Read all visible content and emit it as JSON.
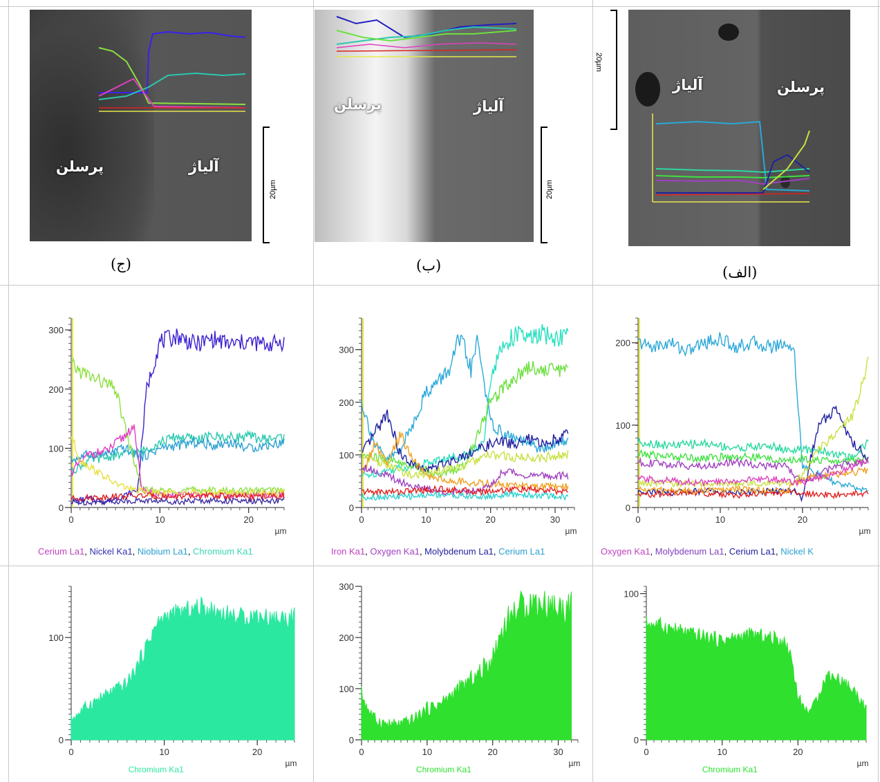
{
  "captions": {
    "right": "(الف)",
    "middle": "(ب)",
    "left": "(ج)"
  },
  "sem_labels": {
    "porcelain": "پرسلن",
    "alloy": "آلیاژ"
  },
  "scale_label": "20µm",
  "colors": {
    "ceramic_bg": "#5a5a5a",
    "accent_yellow": "#e8e84a",
    "cr_left": "#2be8a0",
    "cr_green": "#2fe02f"
  },
  "legends": {
    "left": [
      {
        "text": "Cerium La1",
        "color": "#c040c0"
      },
      {
        "text": "Nickel Ka1",
        "color": "#3030b0"
      },
      {
        "text": "Niobium La1",
        "color": "#2aa0d0"
      },
      {
        "text": "Chromium Ka1",
        "color": "#3ad8b0"
      }
    ],
    "middle": [
      {
        "text": "Iron Ka1",
        "color": "#c040c0"
      },
      {
        "text": "Oxygen Ka1",
        "color": "#a040c0"
      },
      {
        "text": "Molybdenum La1",
        "color": "#2020a0"
      },
      {
        "text": "Cerium La1",
        "color": "#2aa0d0"
      }
    ],
    "right": [
      {
        "text": "Oxygen Ka1",
        "color": "#c040c0"
      },
      {
        "text": "Molybdenum La1",
        "color": "#8040c0"
      },
      {
        "text": "Cerium La1",
        "color": "#2020a0"
      },
      {
        "text": "Nickel K",
        "color": "#2aa0d0"
      }
    ]
  },
  "chart_data": [
    {
      "type": "line",
      "title": "",
      "xlabel": "µm",
      "ylabel": "",
      "xlim": [
        0,
        24
      ],
      "ylim": [
        0,
        320
      ],
      "xticks": [
        0,
        10,
        20
      ],
      "yticks": [
        0,
        100,
        200,
        300
      ],
      "series": [
        {
          "color": "#3a20d0",
          "x": [
            0,
            2,
            4,
            6,
            7.5,
            8.5,
            10,
            12,
            14,
            16,
            18,
            20,
            22,
            24
          ],
          "y": [
            10,
            15,
            10,
            20,
            30,
            200,
            280,
            290,
            275,
            285,
            275,
            280,
            275,
            280
          ]
        },
        {
          "color": "#2ac8b0",
          "x": [
            0,
            2,
            4,
            6,
            8,
            10,
            12,
            14,
            16,
            18,
            20,
            22,
            24
          ],
          "y": [
            60,
            80,
            85,
            90,
            95,
            110,
            120,
            115,
            120,
            118,
            120,
            115,
            120
          ]
        },
        {
          "color": "#2aa0d0",
          "x": [
            0,
            2,
            4,
            6,
            8,
            10,
            12,
            14,
            16,
            18,
            20,
            22,
            24
          ],
          "y": [
            80,
            90,
            90,
            100,
            85,
            100,
            105,
            110,
            105,
            110,
            100,
            105,
            110
          ]
        },
        {
          "color": "#8ce040",
          "x": [
            0,
            1,
            3,
            5,
            6.5,
            8,
            10,
            14,
            18,
            24
          ],
          "y": [
            240,
            230,
            215,
            200,
            110,
            30,
            28,
            30,
            28,
            30
          ]
        },
        {
          "color": "#e040c0",
          "x": [
            0,
            2,
            4,
            6,
            7,
            8,
            10,
            14,
            18,
            24
          ],
          "y": [
            60,
            90,
            95,
            120,
            140,
            30,
            20,
            22,
            20,
            22
          ]
        },
        {
          "color": "#e8e040",
          "x": [
            0,
            1,
            3,
            5,
            7,
            9,
            14,
            24
          ],
          "y": [
            120,
            80,
            60,
            40,
            30,
            25,
            25,
            25
          ]
        },
        {
          "color": "#e02020",
          "x": [
            0,
            4,
            8,
            12,
            16,
            20,
            24
          ],
          "y": [
            15,
            18,
            20,
            18,
            20,
            18,
            20
          ]
        },
        {
          "color": "#4030a0",
          "x": [
            0,
            4,
            8,
            12,
            16,
            20,
            24
          ],
          "y": [
            8,
            10,
            12,
            10,
            12,
            10,
            12
          ]
        }
      ]
    },
    {
      "type": "line",
      "title": "",
      "xlabel": "µm",
      "ylabel": "",
      "xlim": [
        0,
        33
      ],
      "ylim": [
        0,
        360
      ],
      "xticks": [
        0,
        10,
        20,
        30
      ],
      "yticks": [
        0,
        100,
        200,
        300
      ],
      "series": [
        {
          "color": "#2ae0c0",
          "x": [
            0,
            4,
            8,
            12,
            16,
            19,
            20,
            22,
            24,
            26,
            28,
            30,
            32
          ],
          "y": [
            60,
            70,
            80,
            90,
            100,
            120,
            250,
            310,
            330,
            320,
            330,
            320,
            330
          ]
        },
        {
          "color": "#2aa8d8",
          "x": [
            0,
            2,
            4,
            6,
            8,
            10,
            12,
            14,
            15,
            16,
            17,
            18,
            19,
            20,
            22,
            24,
            26,
            28,
            30,
            32
          ],
          "y": [
            200,
            120,
            90,
            110,
            160,
            220,
            240,
            270,
            320,
            300,
            260,
            320,
            240,
            160,
            140,
            130,
            120,
            110,
            120,
            130
          ]
        },
        {
          "color": "#6ce040",
          "x": [
            0,
            4,
            8,
            12,
            16,
            18,
            20,
            22,
            24,
            26,
            28,
            30,
            32
          ],
          "y": [
            100,
            90,
            80,
            60,
            80,
            140,
            200,
            230,
            250,
            270,
            260,
            265,
            260
          ]
        },
        {
          "color": "#2020a0",
          "x": [
            0,
            2,
            4,
            6,
            8,
            10,
            12,
            14,
            16,
            18,
            20,
            22,
            24,
            26,
            28,
            30,
            32
          ],
          "y": [
            100,
            140,
            180,
            100,
            80,
            70,
            80,
            90,
            100,
            110,
            120,
            125,
            120,
            130,
            120,
            130,
            140
          ]
        },
        {
          "color": "#c8e040",
          "x": [
            0,
            4,
            8,
            12,
            16,
            18,
            20,
            24,
            28,
            32
          ],
          "y": [
            100,
            80,
            60,
            70,
            80,
            90,
            100,
            95,
            95,
            100
          ]
        },
        {
          "color": "#f0a020",
          "x": [
            0,
            2,
            4,
            6,
            8,
            10,
            14,
            20,
            26,
            32
          ],
          "y": [
            60,
            120,
            80,
            140,
            90,
            60,
            50,
            45,
            40,
            40
          ]
        },
        {
          "color": "#a040c0",
          "x": [
            0,
            4,
            8,
            12,
            16,
            20,
            22,
            26,
            32
          ],
          "y": [
            80,
            60,
            40,
            30,
            30,
            40,
            70,
            60,
            60
          ]
        },
        {
          "color": "#e02020",
          "x": [
            0,
            6,
            12,
            18,
            24,
            32
          ],
          "y": [
            30,
            30,
            35,
            30,
            35,
            30
          ]
        },
        {
          "color": "#30d0d0",
          "x": [
            0,
            6,
            12,
            18,
            24,
            32
          ],
          "y": [
            20,
            20,
            25,
            20,
            25,
            20
          ]
        }
      ]
    },
    {
      "type": "line",
      "title": "",
      "xlabel": "µm",
      "ylabel": "",
      "xlim": [
        0,
        28
      ],
      "ylim": [
        0,
        230
      ],
      "xticks": [
        0,
        10,
        20
      ],
      "yticks": [
        0,
        100,
        200
      ],
      "series": [
        {
          "color": "#2aa8d8",
          "x": [
            0,
            2,
            4,
            6,
            8,
            10,
            12,
            14,
            16,
            18,
            19,
            19.5,
            20,
            22,
            24,
            26,
            28
          ],
          "y": [
            200,
            195,
            200,
            190,
            200,
            205,
            195,
            200,
            195,
            200,
            190,
            120,
            50,
            40,
            30,
            25,
            20
          ]
        },
        {
          "color": "#2ad8a0",
          "x": [
            0,
            4,
            8,
            12,
            16,
            18,
            20,
            22,
            24,
            26,
            28
          ],
          "y": [
            80,
            75,
            78,
            72,
            75,
            70,
            70,
            70,
            65,
            60,
            80
          ]
        },
        {
          "color": "#40e040",
          "x": [
            0,
            4,
            8,
            12,
            16,
            18,
            20,
            24,
            28
          ],
          "y": [
            65,
            62,
            60,
            62,
            60,
            55,
            60,
            55,
            60
          ]
        },
        {
          "color": "#a040c0",
          "x": [
            0,
            4,
            8,
            12,
            16,
            18,
            20,
            22,
            24,
            26,
            28
          ],
          "y": [
            55,
            52,
            50,
            55,
            50,
            50,
            30,
            40,
            50,
            55,
            55
          ]
        },
        {
          "color": "#2020a0",
          "x": [
            0,
            4,
            8,
            12,
            16,
            19,
            20,
            21,
            22,
            24,
            26,
            28
          ],
          "y": [
            20,
            18,
            20,
            18,
            20,
            20,
            10,
            60,
            100,
            120,
            80,
            60
          ]
        },
        {
          "color": "#c8e040",
          "x": [
            0,
            8,
            16,
            19,
            20,
            22,
            24,
            26,
            27,
            28
          ],
          "y": [
            30,
            28,
            30,
            30,
            40,
            70,
            90,
            110,
            140,
            180
          ]
        },
        {
          "color": "#e02020",
          "x": [
            0,
            6,
            12,
            18,
            24,
            28
          ],
          "y": [
            15,
            18,
            15,
            18,
            15,
            18
          ]
        },
        {
          "color": "#f0a020",
          "x": [
            0,
            6,
            12,
            18,
            20,
            24,
            28
          ],
          "y": [
            22,
            20,
            22,
            20,
            35,
            40,
            45
          ]
        },
        {
          "color": "#e040c0",
          "x": [
            0,
            8,
            16,
            20,
            24,
            28
          ],
          "y": [
            35,
            30,
            35,
            30,
            40,
            60
          ]
        }
      ]
    },
    {
      "type": "area",
      "title": "Chromium Ka1",
      "xlabel": "µm",
      "ylabel": "",
      "xlim": [
        0,
        24
      ],
      "ylim": [
        0,
        150
      ],
      "xticks": [
        0,
        10,
        20
      ],
      "yticks": [
        0,
        100
      ],
      "x": [
        0,
        2,
        4,
        6,
        7,
        8,
        9,
        10,
        12,
        14,
        16,
        18,
        20,
        22,
        24
      ],
      "y": [
        20,
        35,
        45,
        55,
        70,
        90,
        110,
        120,
        125,
        130,
        125,
        120,
        122,
        118,
        120
      ]
    },
    {
      "type": "area",
      "title": "Chromium Ka1",
      "xlabel": "µm",
      "ylabel": "",
      "xlim": [
        0,
        33
      ],
      "ylim": [
        0,
        300
      ],
      "xticks": [
        0,
        10,
        20,
        30
      ],
      "yticks": [
        0,
        100,
        200,
        300
      ],
      "x": [
        0,
        1,
        2,
        4,
        6,
        8,
        10,
        12,
        14,
        16,
        18,
        20,
        21,
        22,
        24,
        26,
        28,
        30,
        32
      ],
      "y": [
        90,
        60,
        40,
        30,
        30,
        40,
        60,
        70,
        90,
        110,
        130,
        160,
        200,
        230,
        260,
        270,
        265,
        255,
        260
      ]
    },
    {
      "type": "area",
      "title": "Chromium Ka1",
      "xlabel": "µm",
      "ylabel": "",
      "xlim": [
        0,
        29
      ],
      "ylim": [
        0,
        105
      ],
      "xticks": [
        0,
        10,
        20
      ],
      "yticks": [
        0,
        100
      ],
      "x": [
        0,
        2,
        4,
        6,
        8,
        10,
        12,
        14,
        16,
        18,
        19,
        20,
        21,
        22,
        23,
        24,
        26,
        28,
        29
      ],
      "y": [
        80,
        78,
        75,
        72,
        70,
        68,
        70,
        72,
        70,
        68,
        60,
        30,
        20,
        22,
        35,
        45,
        40,
        30,
        20
      ]
    }
  ]
}
